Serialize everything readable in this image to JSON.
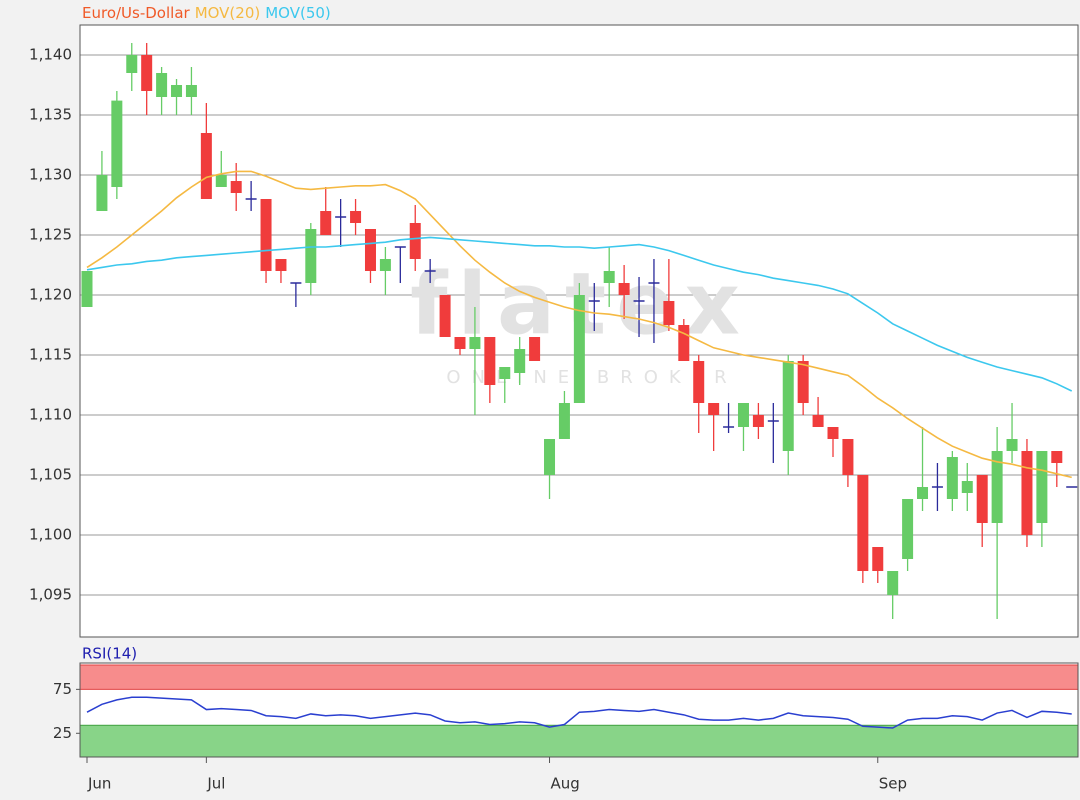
{
  "chart_data": [
    {
      "type": "candlestick",
      "categories": [
        "Jun",
        null,
        null,
        null,
        null,
        null,
        null,
        null,
        "Jul",
        null,
        null,
        null,
        null,
        null,
        null,
        null,
        null,
        null,
        null,
        null,
        null,
        null,
        null,
        null,
        null,
        null,
        null,
        null,
        null,
        null,
        null,
        "Aug",
        null,
        null,
        null,
        null,
        null,
        null,
        null,
        null,
        null,
        null,
        null,
        null,
        null,
        null,
        null,
        null,
        null,
        null,
        null,
        null,
        null,
        "Sep",
        null,
        null,
        null,
        null,
        null,
        null,
        null,
        null,
        null,
        null,
        null,
        null,
        null
      ],
      "series": [
        {
          "name": "Euro/Us-Dollar",
          "type": "candlestick",
          "color": "#f05a28",
          "up_color": "#66cc66",
          "down_color": "#f03c3c",
          "doji_color": "#2a2a9a",
          "open": [
            1.119,
            1.127,
            1.129,
            1.1385,
            1.14,
            1.1365,
            1.1365,
            1.1365,
            1.1335,
            1.129,
            1.1295,
            1.128,
            1.128,
            1.123,
            1.121,
            1.121,
            1.127,
            1.1265,
            1.127,
            1.1255,
            1.122,
            1.124,
            1.126,
            1.122,
            1.12,
            1.1165,
            1.1155,
            1.1165,
            1.113,
            1.1135,
            1.1165,
            1.105,
            1.108,
            1.111,
            1.1195,
            1.121,
            1.121,
            1.1195,
            1.121,
            1.1195,
            1.1175,
            1.1145,
            1.111,
            1.109,
            1.109,
            1.11,
            1.1095,
            1.107,
            1.1145,
            1.11,
            1.109,
            1.108,
            1.105,
            1.099,
            1.095,
            1.098,
            1.103,
            1.104,
            1.103,
            1.1035,
            1.105,
            1.101,
            1.107,
            1.107,
            1.101,
            1.107,
            1.104
          ],
          "high": [
            1.122,
            1.132,
            1.137,
            1.141,
            1.141,
            1.139,
            1.138,
            1.139,
            1.136,
            1.132,
            1.131,
            1.1295,
            1.128,
            1.123,
            1.121,
            1.126,
            1.129,
            1.128,
            1.128,
            1.1255,
            1.124,
            1.124,
            1.1275,
            1.123,
            1.12,
            1.1165,
            1.119,
            1.1165,
            1.114,
            1.1165,
            1.1165,
            1.108,
            1.112,
            1.121,
            1.121,
            1.124,
            1.1225,
            1.1215,
            1.123,
            1.123,
            1.118,
            1.115,
            1.111,
            1.111,
            1.111,
            1.111,
            1.111,
            1.115,
            1.115,
            1.1115,
            1.109,
            1.108,
            1.105,
            1.099,
            1.097,
            1.103,
            1.109,
            1.106,
            1.107,
            1.106,
            1.105,
            1.109,
            1.111,
            1.108,
            1.107,
            1.107,
            1.104
          ],
          "low": [
            1.119,
            1.127,
            1.128,
            1.137,
            1.135,
            1.135,
            1.135,
            1.135,
            1.128,
            1.129,
            1.127,
            1.127,
            1.121,
            1.121,
            1.119,
            1.12,
            1.125,
            1.124,
            1.125,
            1.121,
            1.12,
            1.121,
            1.122,
            1.121,
            1.1165,
            1.115,
            1.11,
            1.111,
            1.111,
            1.1125,
            1.1145,
            1.103,
            1.108,
            1.111,
            1.117,
            1.119,
            1.118,
            1.1165,
            1.116,
            1.117,
            1.1145,
            1.1085,
            1.107,
            1.1085,
            1.107,
            1.108,
            1.106,
            1.105,
            1.11,
            1.109,
            1.1065,
            1.104,
            1.096,
            1.096,
            1.093,
            1.097,
            1.102,
            1.102,
            1.102,
            1.102,
            1.099,
            1.093,
            1.106,
            1.099,
            1.099,
            1.104,
            1.104
          ],
          "close": [
            1.122,
            1.13,
            1.1362,
            1.14,
            1.137,
            1.1385,
            1.1375,
            1.1375,
            1.128,
            1.13,
            1.1285,
            1.128,
            1.122,
            1.122,
            1.121,
            1.1255,
            1.125,
            1.1265,
            1.126,
            1.122,
            1.123,
            1.124,
            1.123,
            1.122,
            1.1165,
            1.1155,
            1.1165,
            1.1125,
            1.114,
            1.1155,
            1.1145,
            1.108,
            1.111,
            1.12,
            1.1195,
            1.122,
            1.12,
            1.1195,
            1.121,
            1.1175,
            1.1145,
            1.111,
            1.11,
            1.109,
            1.111,
            1.109,
            1.1095,
            1.1145,
            1.111,
            1.109,
            1.108,
            1.105,
            1.097,
            1.097,
            1.097,
            1.103,
            1.104,
            1.104,
            1.1065,
            1.1045,
            1.101,
            1.107,
            1.108,
            1.1,
            1.107,
            1.106,
            1.104
          ]
        },
        {
          "name": "MOV(20)",
          "type": "line",
          "color": "#f5b942",
          "values": [
            1.1223,
            1.1231,
            1.124,
            1.125,
            1.126,
            1.127,
            1.1281,
            1.129,
            1.1298,
            1.1301,
            1.1303,
            1.1303,
            1.1299,
            1.1294,
            1.1289,
            1.1288,
            1.1289,
            1.129,
            1.1291,
            1.1291,
            1.1292,
            1.1287,
            1.128,
            1.1267,
            1.1254,
            1.1241,
            1.1229,
            1.1219,
            1.121,
            1.1203,
            1.1198,
            1.1194,
            1.119,
            1.1187,
            1.1185,
            1.1184,
            1.1182,
            1.118,
            1.1177,
            1.1173,
            1.1168,
            1.1162,
            1.1156,
            1.1153,
            1.115,
            1.1148,
            1.1146,
            1.1144,
            1.1142,
            1.1139,
            1.1136,
            1.1133,
            1.1124,
            1.1114,
            1.1106,
            1.1097,
            1.1089,
            1.1081,
            1.1074,
            1.1069,
            1.1064,
            1.1061,
            1.1059,
            1.1056,
            1.1054,
            1.1051,
            1.1048
          ]
        },
        {
          "name": "MOV(50)",
          "type": "line",
          "color": "#3cc8ee",
          "values": [
            1.1221,
            1.1223,
            1.1225,
            1.1226,
            1.1228,
            1.1229,
            1.1231,
            1.1232,
            1.1233,
            1.1234,
            1.1235,
            1.1236,
            1.1237,
            1.1238,
            1.1239,
            1.124,
            1.124,
            1.1241,
            1.1242,
            1.1243,
            1.1244,
            1.1246,
            1.1247,
            1.1248,
            1.1247,
            1.1246,
            1.1245,
            1.1244,
            1.1243,
            1.1242,
            1.1241,
            1.1241,
            1.124,
            1.124,
            1.1239,
            1.124,
            1.1241,
            1.1242,
            1.124,
            1.1237,
            1.1233,
            1.1229,
            1.1225,
            1.1222,
            1.1219,
            1.1217,
            1.1214,
            1.1212,
            1.121,
            1.1208,
            1.1205,
            1.1201,
            1.1193,
            1.1185,
            1.1176,
            1.117,
            1.1164,
            1.1158,
            1.1153,
            1.1148,
            1.1144,
            1.114,
            1.1137,
            1.1134,
            1.1131,
            1.1126,
            1.112
          ]
        }
      ],
      "ylim": [
        1.0915,
        1.1425
      ],
      "yticks": [
        {
          "value": 1.095,
          "label": "1,095"
        },
        {
          "value": 1.1,
          "label": "1,100"
        },
        {
          "value": 1.105,
          "label": "1,105"
        },
        {
          "value": 1.11,
          "label": "1,110"
        },
        {
          "value": 1.115,
          "label": "1,115"
        },
        {
          "value": 1.12,
          "label": "1,120"
        },
        {
          "value": 1.125,
          "label": "1,125"
        },
        {
          "value": 1.13,
          "label": "1,130"
        },
        {
          "value": 1.135,
          "label": "1,135"
        },
        {
          "value": 1.14,
          "label": "1,140"
        }
      ],
      "grid": true,
      "watermark": {
        "logo": "flatex",
        "tagline": "ONLINE BROKER"
      }
    },
    {
      "type": "line",
      "title": "RSI(14)",
      "title_color": "#2020b0",
      "color": "#2a3fd0",
      "values": [
        49,
        58,
        63,
        66,
        66,
        65,
        64,
        63,
        52,
        53,
        52,
        51,
        45,
        44,
        42,
        47,
        45,
        46,
        45,
        42,
        44,
        46,
        48,
        46,
        39,
        37,
        38,
        35,
        36,
        38,
        37,
        32,
        35,
        49,
        50,
        52,
        51,
        50,
        52,
        49,
        46,
        41,
        40,
        40,
        42,
        40,
        42,
        48,
        45,
        44,
        43,
        41,
        33,
        32,
        31,
        40,
        42,
        42,
        45,
        44,
        40,
        48,
        51,
        43,
        50,
        49,
        47
      ],
      "ylim": [
        -2,
        105
      ],
      "yticks": [
        25,
        75
      ],
      "upper_zone_color": "#f78c8c",
      "lower_zone_color": "#88d488"
    }
  ]
}
